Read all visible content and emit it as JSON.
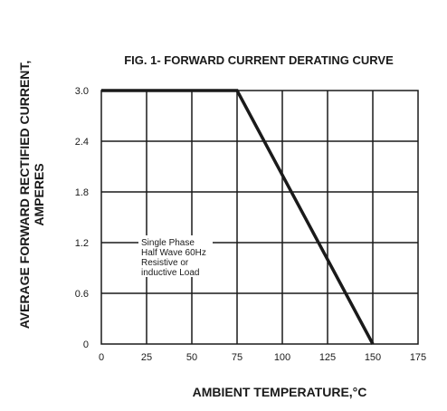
{
  "chart_data": {
    "type": "line",
    "title": "FIG. 1- FORWARD CURRENT DERATING CURVE",
    "xlabel": "AMBIENT TEMPERATURE,°C",
    "ylabel_lines": [
      "AVERAGE FORWARD RECTIFIED CURRENT,",
      "AMPERES"
    ],
    "x_ticks": [
      "0",
      "25",
      "50",
      "75",
      "100",
      "125",
      "150",
      "175"
    ],
    "y_ticks": [
      "0",
      "0.6",
      "1.2",
      "1.8",
      "2.4",
      "3.0"
    ],
    "xlim": [
      0,
      175
    ],
    "ylim": [
      0,
      3.0
    ],
    "x_tick_values": [
      0,
      25,
      50,
      75,
      100,
      125,
      150,
      175
    ],
    "y_tick_values": [
      0,
      0.6,
      1.2,
      1.8,
      2.4,
      3.0
    ],
    "grid": true,
    "series": [
      {
        "x": [
          0,
          75,
          150
        ],
        "y": [
          3.0,
          3.0,
          0
        ],
        "color": "#1a1a1a"
      }
    ],
    "annotation": {
      "lines": [
        "Single Phase",
        "Half Wave 60Hz",
        "Resistive or",
        "inductive Load"
      ]
    }
  }
}
